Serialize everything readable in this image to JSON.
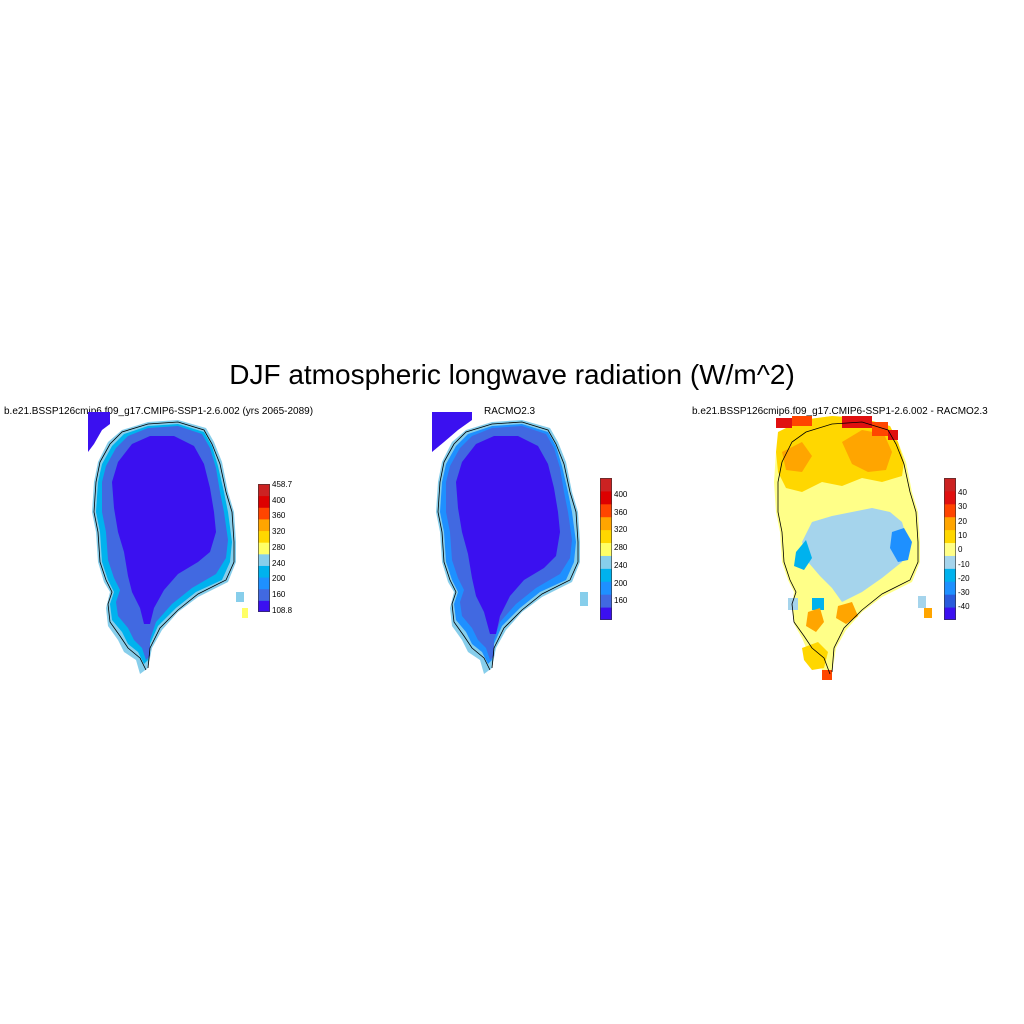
{
  "title": "DJF atmospheric longwave radiation (W/m^2)",
  "panels": [
    {
      "title": "b.e21.BSSP126cmip6.f09_g17.CMIP6-SSP1-2.6.002 (yrs 2065-2089)",
      "colorbar": {
        "colors": [
          "#3b10f0",
          "#4169e1",
          "#1e90ff",
          "#00b2ee",
          "#87ceeb",
          "#ffff66",
          "#ffd700",
          "#ffa500",
          "#ff4500",
          "#dd0000",
          "#cc2222"
        ],
        "labels": [
          "458.7",
          "400",
          "360",
          "320",
          "280",
          "240",
          "200",
          "160",
          "108.8"
        ]
      }
    },
    {
      "title": "RACMO2.3",
      "colorbar": {
        "colors": [
          "#3b10f0",
          "#4169e1",
          "#1e90ff",
          "#00b2ee",
          "#87ceeb",
          "#ffff66",
          "#ffd700",
          "#ffa500",
          "#ff4500",
          "#dd0000",
          "#cc2222"
        ],
        "labels": [
          "400",
          "360",
          "320",
          "280",
          "240",
          "200",
          "160"
        ]
      }
    },
    {
      "title": "b.e21.BSSP126cmip6.f09_g17.CMIP6-SSP1-2.6.002 - RACMO2.3",
      "colorbar": {
        "colors": [
          "#3b10f0",
          "#2a5bdc",
          "#1e90ff",
          "#00b2ee",
          "#a5d4ec",
          "#ffff88",
          "#ffd700",
          "#ffa500",
          "#ff4500",
          "#e01010",
          "#cc2222"
        ],
        "labels": [
          "40",
          "30",
          "20",
          "10",
          "0",
          "-10",
          "-20",
          "-30",
          "-40"
        ]
      }
    }
  ]
}
